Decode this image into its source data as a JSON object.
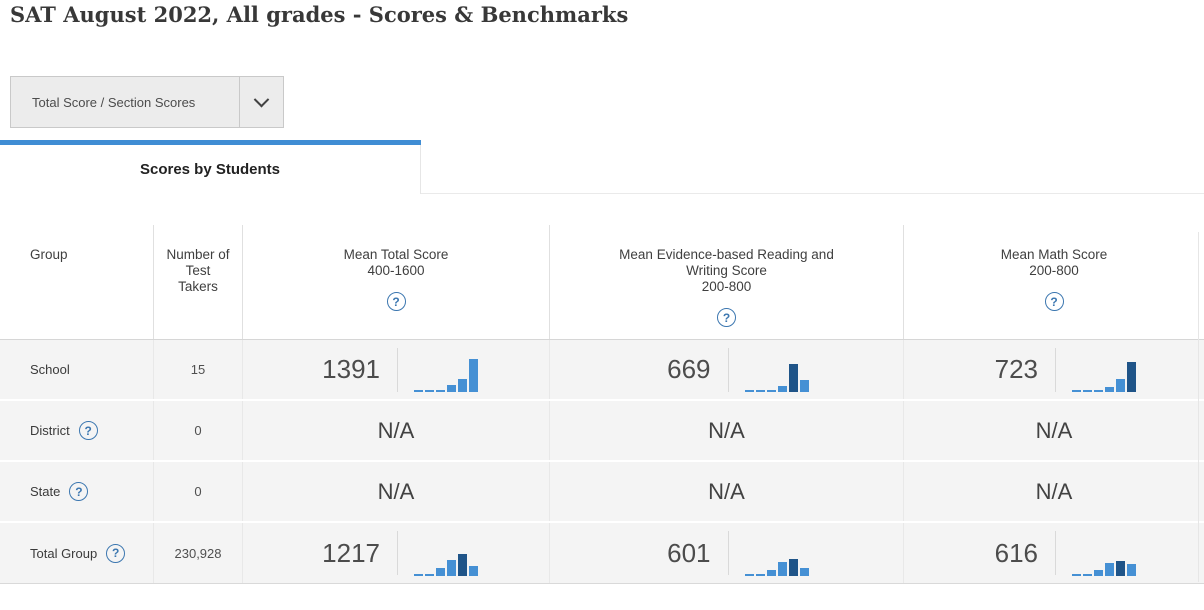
{
  "page_title": "SAT August 2022, All grades - Scores & Benchmarks",
  "filter_dropdown": {
    "selected_option": "Total Score / Section Scores"
  },
  "tab": {
    "label": "Scores by Students",
    "active": true
  },
  "icons": {
    "help_glyph": "?",
    "dropdown_chevron": "chevron-down"
  },
  "colors": {
    "accent_blue": "#3f8dd4",
    "bar_light": "#4590d4",
    "bar_dark": "#1f5488",
    "help_icon_blue": "#3c77b0",
    "row_background": "#f4f4f4"
  },
  "table": {
    "columns": [
      {
        "label": "Group"
      },
      {
        "label": "Number of Test Takers"
      },
      {
        "label": "Mean Total Score",
        "range": "400-1600",
        "has_help": true
      },
      {
        "label": "Mean Evidence-based Reading and Writing Score",
        "range": "200-800",
        "has_help": true
      },
      {
        "label": "Mean Math Score",
        "range": "200-800",
        "has_help": true
      }
    ],
    "rows": [
      {
        "group": "School",
        "help": false,
        "test_takers": "15",
        "total": {
          "value": "1391",
          "bars": [
            2,
            2,
            2,
            7,
            13,
            33
          ],
          "highlight": -1
        },
        "erw": {
          "value": "669",
          "bars": [
            2,
            2,
            2,
            6,
            28,
            12
          ],
          "highlight": 4
        },
        "math": {
          "value": "723",
          "bars": [
            2,
            2,
            2,
            5,
            13,
            30
          ],
          "highlight": 5
        }
      },
      {
        "group": "District",
        "help": true,
        "test_takers": "0",
        "total": {
          "value": "N/A"
        },
        "erw": {
          "value": "N/A"
        },
        "math": {
          "value": "N/A"
        }
      },
      {
        "group": "State",
        "help": true,
        "test_takers": "0",
        "total": {
          "value": "N/A"
        },
        "erw": {
          "value": "N/A"
        },
        "math": {
          "value": "N/A"
        }
      },
      {
        "group": "Total Group",
        "help": true,
        "test_takers": "230,928",
        "total": {
          "value": "1217",
          "bars": [
            2,
            2,
            8,
            16,
            22,
            10
          ],
          "highlight": 4
        },
        "erw": {
          "value": "601",
          "bars": [
            2,
            2,
            6,
            14,
            17,
            8
          ],
          "highlight": 4
        },
        "math": {
          "value": "616",
          "bars": [
            2,
            2,
            6,
            13,
            15,
            12
          ],
          "highlight": 4
        }
      }
    ]
  },
  "chart_data": [
    {
      "type": "bar",
      "owner": "School Mean Total Score 1391",
      "values": [
        2,
        2,
        2,
        7,
        13,
        33
      ],
      "highlight_bin": null
    },
    {
      "type": "bar",
      "owner": "School Mean ERW Score 669",
      "values": [
        2,
        2,
        2,
        6,
        28,
        12
      ],
      "highlight_bin": 5
    },
    {
      "type": "bar",
      "owner": "School Mean Math Score 723",
      "values": [
        2,
        2,
        2,
        5,
        13,
        30
      ],
      "highlight_bin": 6
    },
    {
      "type": "bar",
      "owner": "Total Group Mean Total Score 1217",
      "values": [
        2,
        2,
        8,
        16,
        22,
        10
      ],
      "highlight_bin": 5
    },
    {
      "type": "bar",
      "owner": "Total Group Mean ERW Score 601",
      "values": [
        2,
        2,
        6,
        14,
        17,
        8
      ],
      "highlight_bin": 5
    },
    {
      "type": "bar",
      "owner": "Total Group Mean Math Score 616",
      "values": [
        2,
        2,
        6,
        13,
        15,
        12
      ],
      "highlight_bin": 5
    }
  ]
}
